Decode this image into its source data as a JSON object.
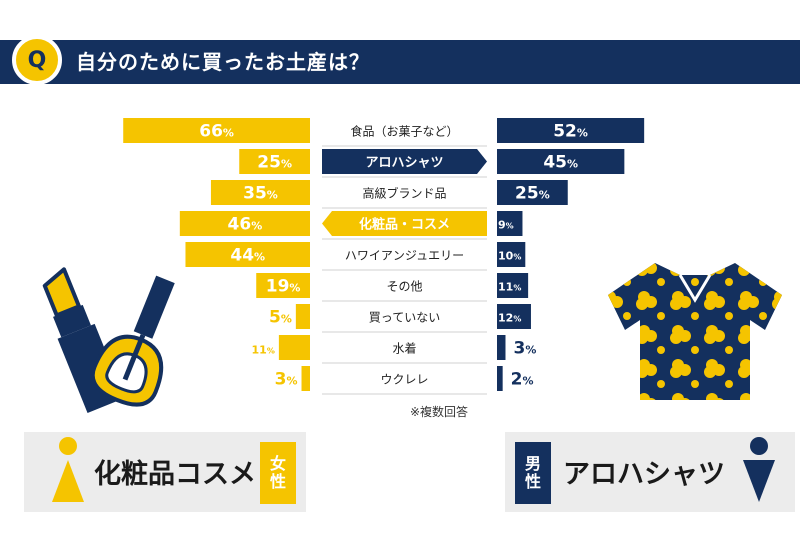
{
  "question_badge": "Q",
  "question": "自分のために買ったお土産は？",
  "note": "※複数回答",
  "colors": {
    "female": "#f5c400",
    "male": "#14305e",
    "highlight_text": "#ffffff"
  },
  "chart_data": {
    "type": "bar",
    "orientation": "horizontal-butterfly",
    "categories": [
      "食品（お菓子など）",
      "アロハシャツ",
      "高級ブランド品",
      "化粧品・コスメ",
      "ハワイアンジュエリー",
      "その他",
      "買っていない",
      "水着",
      "ウクレレ"
    ],
    "series": [
      {
        "name": "女性",
        "values": [
          66,
          25,
          35,
          46,
          44,
          19,
          5,
          11,
          3
        ]
      },
      {
        "name": "男性",
        "values": [
          52,
          45,
          25,
          9,
          10,
          11,
          12,
          3,
          2
        ]
      }
    ],
    "unit": "%",
    "highlighted": {
      "アロハシャツ": "男性",
      "化粧品・コスメ": "女性"
    }
  },
  "female_panel": {
    "answer": "化粧品コスメ",
    "label_line1": "女",
    "label_line2": "性"
  },
  "male_panel": {
    "answer": "アロハシャツ",
    "label_line1": "男",
    "label_line2": "性"
  }
}
